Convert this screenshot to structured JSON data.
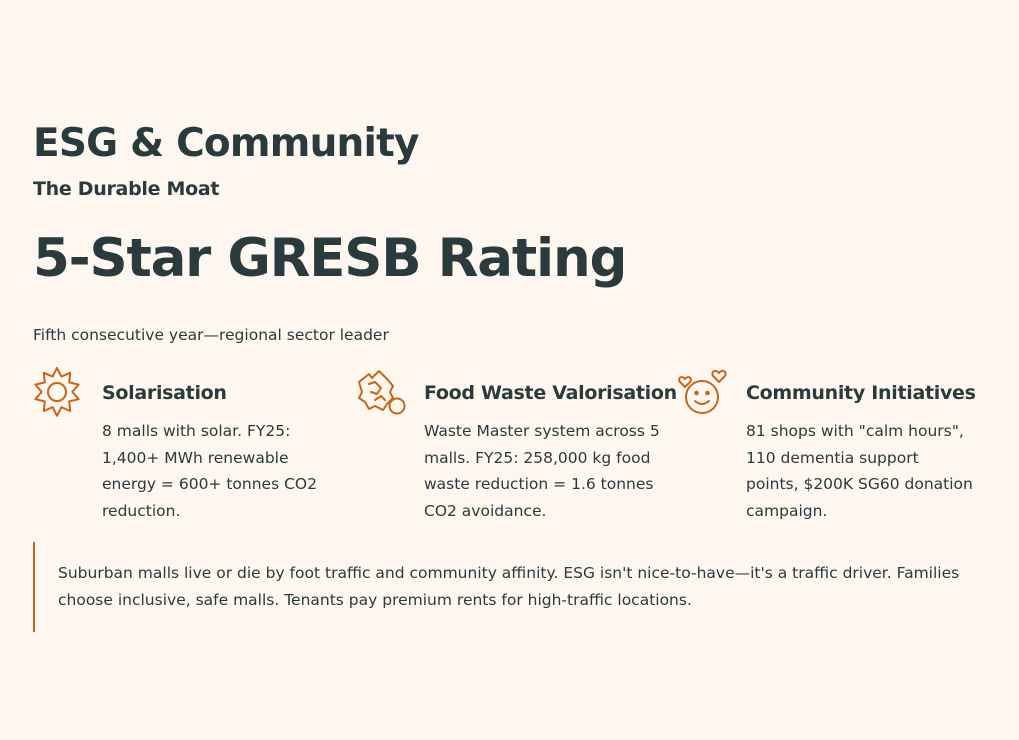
{
  "header": {
    "title": "ESG & Community",
    "subtitle": "The Durable Moat"
  },
  "headline": {
    "text": "5-Star GRESB Rating",
    "subtext": "Fifth consecutive year—regional sector leader"
  },
  "accent_color": "#c8651b",
  "text_color": "#2b3a3c",
  "background_color": "#fdf7f0",
  "features": [
    {
      "icon": "sun-icon",
      "title": "Solarisation",
      "body": "8 malls with solar. FY25: 1,400+ MWh renewable energy = 600+ tonnes CO2 reduction."
    },
    {
      "icon": "food-waste-icon",
      "title": "Food Waste Valorisation",
      "body": "Waste Master system across 5 malls. FY25: 258,000 kg food waste reduction = 1.6 tonnes CO2 avoidance."
    },
    {
      "icon": "smiley-hearts-icon",
      "title": "Community Initiatives",
      "body": "81 shops with \"calm hours\", 110 dementia support points, $200K SG60 donation campaign."
    }
  ],
  "callout": {
    "text": "Suburban malls live or die by foot traffic and community affinity. ESG isn't nice-to-have—it's a traffic driver. Families choose inclusive, safe malls. Tenants pay premium rents for high-traffic locations."
  }
}
